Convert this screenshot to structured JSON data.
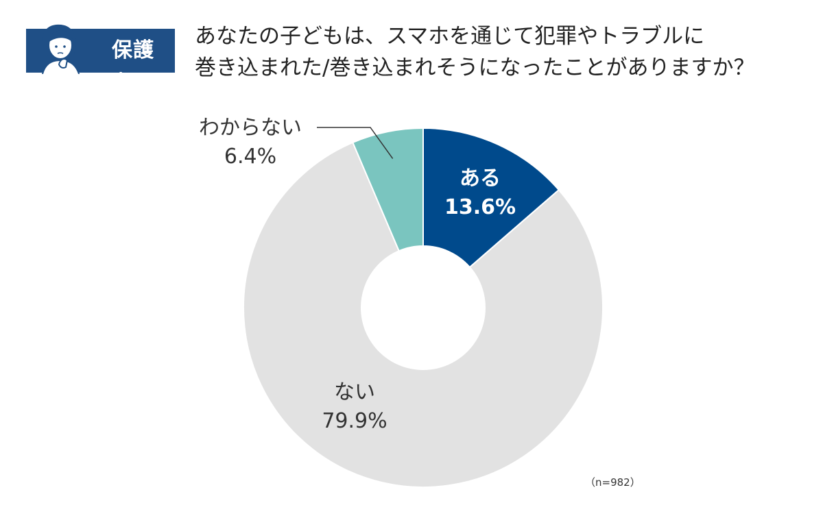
{
  "header": {
    "badge_label": "保護者",
    "title_line1": "あなたの子どもは、スマホを通じて犯罪やトラブルに",
    "title_line2": "巻き込まれた/巻き込まれそうになったことがありますか？"
  },
  "chart_data": {
    "type": "pie",
    "donut": true,
    "slices": [
      {
        "label": "ある",
        "value": 13.6,
        "value_label": "13.6%",
        "color": "#004A8C",
        "text_color": "#ffffff"
      },
      {
        "label": "ない",
        "value": 79.9,
        "value_label": "79.9%",
        "color": "#E2E2E2",
        "text_color": "#333333"
      },
      {
        "label": "わからない",
        "value": 6.4,
        "value_label": "6.4%",
        "color": "#7AC5BF",
        "text_color": "#333333"
      }
    ],
    "sample_note": "（n=982）"
  },
  "colors": {
    "badge": "#1f4f86"
  }
}
